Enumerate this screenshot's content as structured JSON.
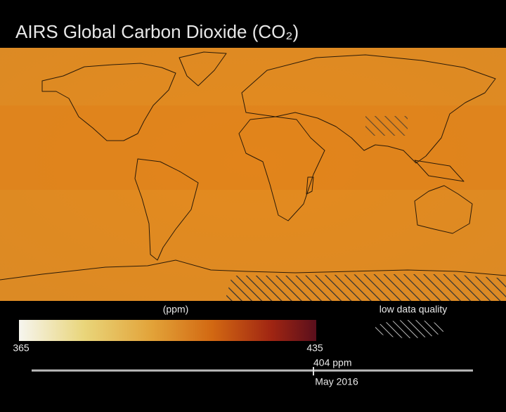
{
  "header": {
    "title": "AIRS Global Carbon Dioxide (CO₂)"
  },
  "colorbar": {
    "label": "(ppm)",
    "min_label": "365",
    "max_label": "435"
  },
  "legend": {
    "label": "low data quality"
  },
  "timeline": {
    "value_label": "404 ppm",
    "date_label": "May 2016"
  }
}
